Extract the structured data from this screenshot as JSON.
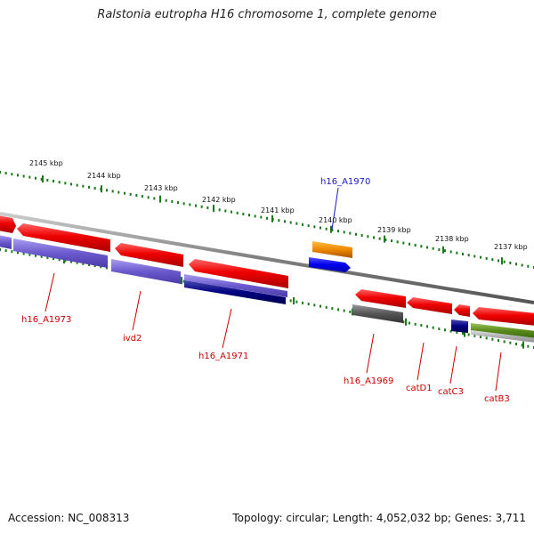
{
  "title": "Ralstonia eutropha H16 chromosome 1, complete genome",
  "footer": {
    "accession": "Accession: NC_008313",
    "summary": "Topology: circular; Length: 4,052,032 bp; Genes: 3,711"
  },
  "scale_ticks": [
    {
      "label": "2145 kbp",
      "kbp": 2145
    },
    {
      "label": "2144 kbp",
      "kbp": 2144
    },
    {
      "label": "2143 kbp",
      "kbp": 2143
    },
    {
      "label": "2142 kbp",
      "kbp": 2142
    },
    {
      "label": "2141 kbp",
      "kbp": 2141
    },
    {
      "label": "2140 kbp",
      "kbp": 2140
    },
    {
      "label": "2139 kbp",
      "kbp": 2139
    },
    {
      "label": "2138 kbp",
      "kbp": 2138
    },
    {
      "label": "2137 kbp",
      "kbp": 2137
    }
  ],
  "gene_labels": [
    {
      "name": "h16_A1970",
      "color": "#1a1acc"
    },
    {
      "name": "h16_A1973",
      "color": "#cc0000"
    },
    {
      "name": "ivd2",
      "color": "#cc0000"
    },
    {
      "name": "h16_A1971",
      "color": "#cc0000"
    },
    {
      "name": "h16_A1969",
      "color": "#cc0000"
    },
    {
      "name": "catD1",
      "color": "#cc0000"
    },
    {
      "name": "catC3",
      "color": "#cc0000"
    },
    {
      "name": "catB3",
      "color": "#cc0000"
    }
  ],
  "colors": {
    "backbone": "#8a8a8a",
    "tick": "#1a7a1a",
    "cds_red": "#ee0000",
    "cds_purple": "#6a5acd",
    "cds_navy": "#000080",
    "cds_orange": "#ee8800",
    "cds_blue": "#0000ee",
    "cds_gray": "#555555",
    "cds_olive": "#5a8a1a",
    "cds_lightgray": "#b0b0b0"
  }
}
